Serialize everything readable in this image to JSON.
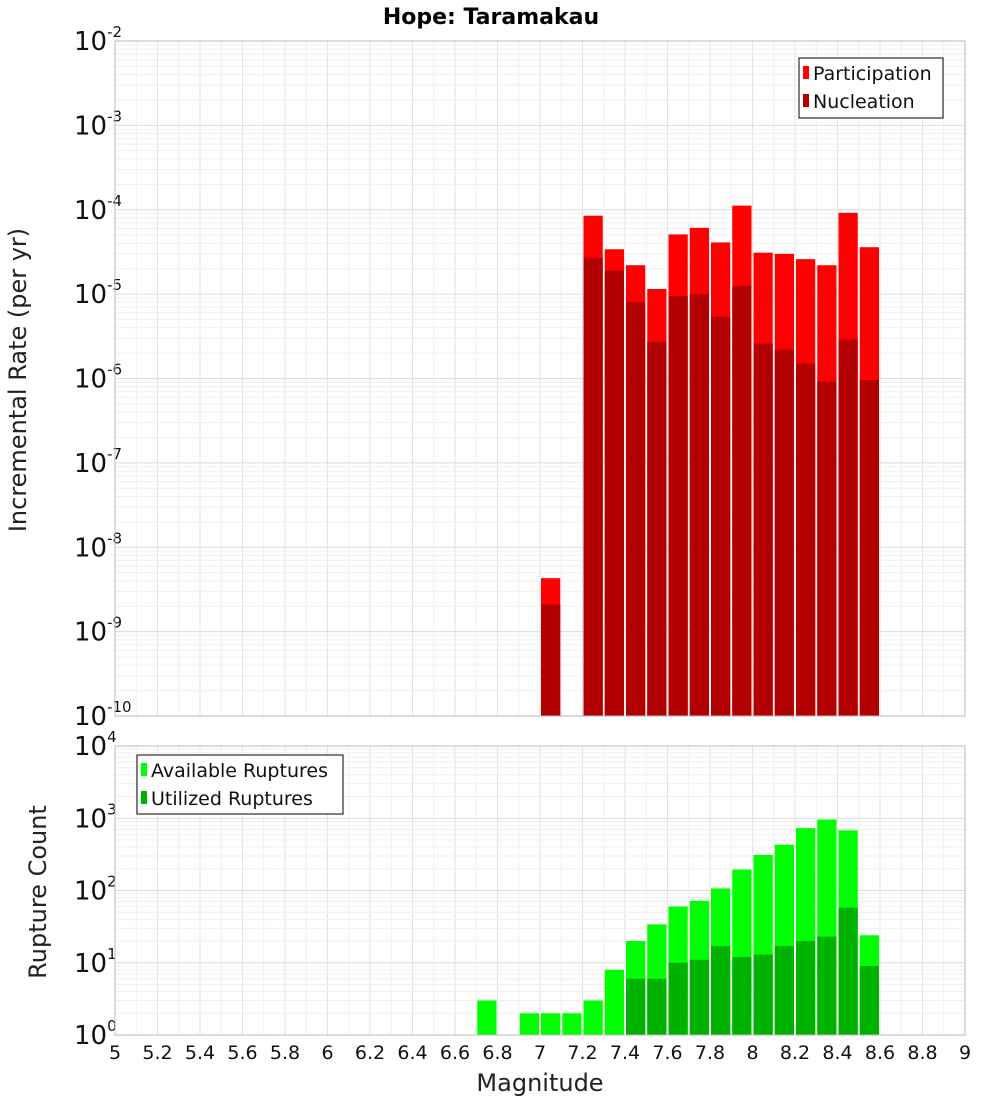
{
  "chart_data": [
    {
      "type": "bar",
      "title": "Hope: Taramakau",
      "xlabel": "Magnitude",
      "ylabel": "Incremental Rate (per yr)",
      "yscale": "log",
      "xlim": [
        5,
        9
      ],
      "ylim_exp": [
        -10,
        -2
      ],
      "y_tick_exponents": [
        "-10",
        "-9",
        "-8",
        "-7",
        "-6",
        "-5",
        "-4",
        "-3",
        "-2"
      ],
      "legend_position": "top-right",
      "series": [
        {
          "name": "Participation",
          "color": "#ff0000",
          "x": [
            7.05,
            7.25,
            7.35,
            7.45,
            7.55,
            7.65,
            7.75,
            7.85,
            7.95,
            8.05,
            8.15,
            8.25,
            8.35,
            8.45,
            8.55
          ],
          "values": [
            4.3e-09,
            8.5e-05,
            3.4e-05,
            2.2e-05,
            1.15e-05,
            5.1e-05,
            6.1e-05,
            4.1e-05,
            0.000112,
            3.1e-05,
            3e-05,
            2.6e-05,
            2.2e-05,
            9.2e-05,
            3.6e-05
          ]
        },
        {
          "name": "Nucleation",
          "color": "#b20000",
          "x": [
            7.05,
            7.25,
            7.35,
            7.45,
            7.55,
            7.65,
            7.75,
            7.85,
            7.95,
            8.05,
            8.15,
            8.25,
            8.35,
            8.45,
            8.55
          ],
          "values": [
            2.1e-09,
            2.7e-05,
            1.9e-05,
            8e-06,
            2.7e-06,
            9.5e-06,
            1e-05,
            5.4e-06,
            1.25e-05,
            2.6e-06,
            2.2e-06,
            1.5e-06,
            9.2e-07,
            2.9e-06,
            9.6e-07
          ]
        }
      ]
    },
    {
      "type": "bar",
      "title": "",
      "xlabel": "Magnitude",
      "ylabel": "Rupture Count",
      "yscale": "log",
      "xlim": [
        5,
        9
      ],
      "x_tick_labels": [
        "5",
        "5.2",
        "5.4",
        "5.6",
        "5.8",
        "6",
        "6.2",
        "6.4",
        "6.6",
        "6.8",
        "7",
        "7.2",
        "7.4",
        "7.6",
        "7.8",
        "8",
        "8.2",
        "8.4",
        "8.6",
        "8.8",
        "9"
      ],
      "ylim_exp": [
        0,
        4
      ],
      "y_tick_exponents": [
        "0",
        "1",
        "2",
        "3",
        "4"
      ],
      "legend_position": "top-left",
      "series": [
        {
          "name": "Available Ruptures",
          "color": "#00ff00",
          "x": [
            6.75,
            6.95,
            7.05,
            7.15,
            7.25,
            7.35,
            7.45,
            7.55,
            7.65,
            7.75,
            7.85,
            7.95,
            8.05,
            8.15,
            8.25,
            8.35,
            8.45,
            8.55
          ],
          "values": [
            3,
            2,
            2,
            2,
            3,
            8,
            20,
            34,
            60,
            72,
            107,
            195,
            310,
            430,
            730,
            960,
            680,
            24
          ]
        },
        {
          "name": "Utilized Ruptures",
          "color": "#00b200",
          "x": [
            7.05,
            7.25,
            7.35,
            7.45,
            7.55,
            7.65,
            7.75,
            7.85,
            7.95,
            8.05,
            8.15,
            8.25,
            8.35,
            8.45,
            8.55
          ],
          "values": [
            1,
            1,
            1,
            6,
            6,
            10,
            11,
            17,
            12,
            13,
            17,
            20,
            23,
            58,
            9
          ]
        }
      ]
    }
  ]
}
